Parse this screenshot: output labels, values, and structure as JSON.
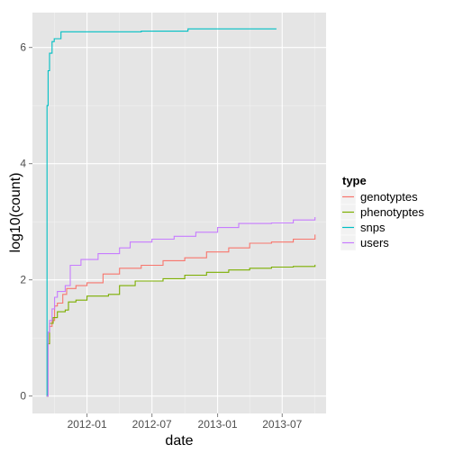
{
  "chart_data": {
    "type": "line",
    "xlabel": "date",
    "ylabel": "log10(count)",
    "x_ticks": [
      "2012-01",
      "2012-07",
      "2013-01",
      "2013-07"
    ],
    "y_ticks": [
      "0",
      "2",
      "4",
      "6"
    ],
    "xlim": [
      "2011-08-01",
      "2013-11-01"
    ],
    "ylim": [
      -0.3,
      6.6
    ],
    "grid": true,
    "legend": {
      "title": "type",
      "position": "right"
    },
    "series": [
      {
        "name": "genotyptes",
        "color": "#F8766D",
        "points": [
          [
            "2011-09-10",
            0.0
          ],
          [
            "2011-09-14",
            0.9
          ],
          [
            "2011-09-18",
            1.2
          ],
          [
            "2011-09-25",
            1.3
          ],
          [
            "2011-10-02",
            1.55
          ],
          [
            "2011-10-10",
            1.6
          ],
          [
            "2011-10-25",
            1.75
          ],
          [
            "2011-11-05",
            1.85
          ],
          [
            "2011-12-01",
            1.9
          ],
          [
            "2012-01-01",
            1.95
          ],
          [
            "2012-02-15",
            2.1
          ],
          [
            "2012-04-01",
            2.2
          ],
          [
            "2012-06-01",
            2.25
          ],
          [
            "2012-08-01",
            2.33
          ],
          [
            "2012-10-01",
            2.38
          ],
          [
            "2012-12-01",
            2.48
          ],
          [
            "2013-02-01",
            2.55
          ],
          [
            "2013-04-01",
            2.63
          ],
          [
            "2013-06-01",
            2.65
          ],
          [
            "2013-08-01",
            2.7
          ],
          [
            "2013-10-01",
            2.78
          ]
        ]
      },
      {
        "name": "phenotyptes",
        "color": "#7CAE00",
        "points": [
          [
            "2011-09-10",
            0.0
          ],
          [
            "2011-09-14",
            0.9
          ],
          [
            "2011-09-18",
            1.25
          ],
          [
            "2011-09-28",
            1.35
          ],
          [
            "2011-10-10",
            1.45
          ],
          [
            "2011-11-01",
            1.48
          ],
          [
            "2011-11-10",
            1.62
          ],
          [
            "2011-12-01",
            1.65
          ],
          [
            "2012-01-01",
            1.72
          ],
          [
            "2012-03-01",
            1.75
          ],
          [
            "2012-04-01",
            1.9
          ],
          [
            "2012-05-15",
            1.98
          ],
          [
            "2012-08-01",
            2.02
          ],
          [
            "2012-10-01",
            2.08
          ],
          [
            "2012-12-01",
            2.13
          ],
          [
            "2013-02-01",
            2.17
          ],
          [
            "2013-04-01",
            2.2
          ],
          [
            "2013-06-01",
            2.22
          ],
          [
            "2013-08-01",
            2.23
          ],
          [
            "2013-10-01",
            2.26
          ]
        ]
      },
      {
        "name": "snps",
        "color": "#00BFC4",
        "points": [
          [
            "2011-09-10",
            0.0
          ],
          [
            "2011-09-11",
            5.0
          ],
          [
            "2011-09-14",
            5.6
          ],
          [
            "2011-09-18",
            5.9
          ],
          [
            "2011-09-25",
            6.1
          ],
          [
            "2011-10-01",
            6.15
          ],
          [
            "2011-10-15",
            6.15
          ],
          [
            "2011-10-20",
            6.27
          ],
          [
            "2012-02-01",
            6.27
          ],
          [
            "2012-06-01",
            6.28
          ],
          [
            "2012-10-01",
            6.28
          ],
          [
            "2012-10-10",
            6.32
          ],
          [
            "2013-06-15",
            6.32
          ]
        ]
      },
      {
        "name": "users",
        "color": "#C77CFF",
        "points": [
          [
            "2011-09-10",
            0.0
          ],
          [
            "2011-09-14",
            1.1
          ],
          [
            "2011-09-18",
            1.3
          ],
          [
            "2011-09-25",
            1.5
          ],
          [
            "2011-10-02",
            1.7
          ],
          [
            "2011-10-10",
            1.8
          ],
          [
            "2011-11-01",
            1.9
          ],
          [
            "2011-11-15",
            2.25
          ],
          [
            "2011-12-15",
            2.35
          ],
          [
            "2012-02-01",
            2.45
          ],
          [
            "2012-04-01",
            2.55
          ],
          [
            "2012-05-01",
            2.65
          ],
          [
            "2012-07-01",
            2.7
          ],
          [
            "2012-09-01",
            2.75
          ],
          [
            "2012-11-01",
            2.82
          ],
          [
            "2013-01-01",
            2.9
          ],
          [
            "2013-03-01",
            2.97
          ],
          [
            "2013-06-01",
            2.98
          ],
          [
            "2013-08-01",
            3.03
          ],
          [
            "2013-10-01",
            3.08
          ]
        ]
      }
    ]
  }
}
